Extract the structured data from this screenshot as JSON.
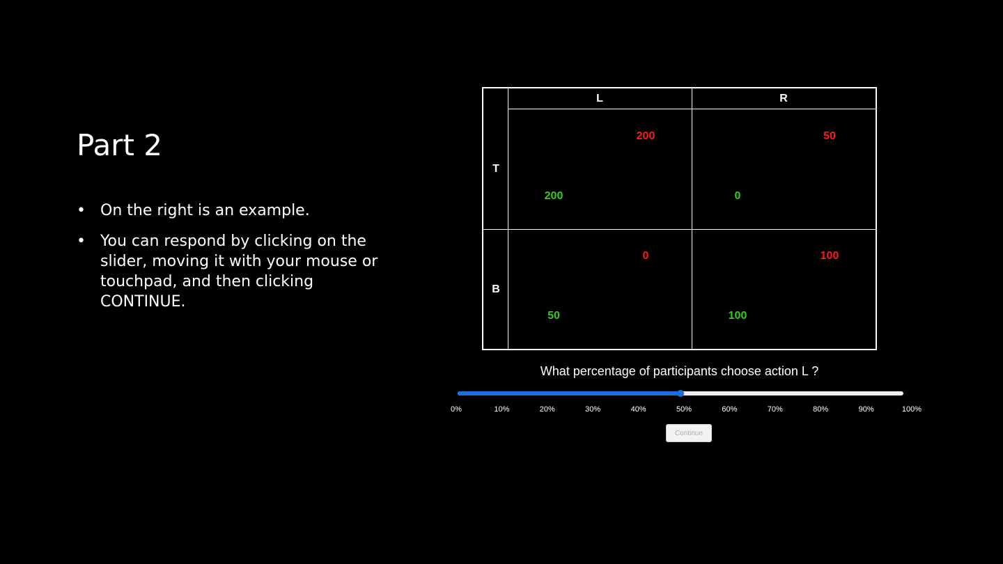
{
  "slide": {
    "title": "Part 2",
    "bullets": [
      {
        "marker": "•",
        "text": "On the right is an example."
      },
      {
        "marker": "•",
        "text": "You can respond by clicking on the slider, moving it with your mouse or touchpad, and then clicking CONTINUE."
      }
    ]
  },
  "matrix": {
    "col_labels": [
      "L",
      "R"
    ],
    "row_labels": [
      "T",
      "B"
    ],
    "cells": {
      "TL": {
        "red": "200",
        "green": "200"
      },
      "TR": {
        "red": "50",
        "green": "0"
      },
      "BL": {
        "red": "0",
        "green": "50"
      },
      "BR": {
        "red": "100",
        "green": "100"
      }
    },
    "colors": {
      "red": "#ff1a1a",
      "green": "#33cc1a"
    }
  },
  "question": "What percentage of participants choose action L ?",
  "slider": {
    "value_percent": 50,
    "ticks": [
      "0%",
      "10%",
      "20%",
      "30%",
      "40%",
      "50%",
      "60%",
      "70%",
      "80%",
      "90%",
      "100%"
    ],
    "fill_color": "#1a6fe0"
  },
  "continue_label": "Continue"
}
